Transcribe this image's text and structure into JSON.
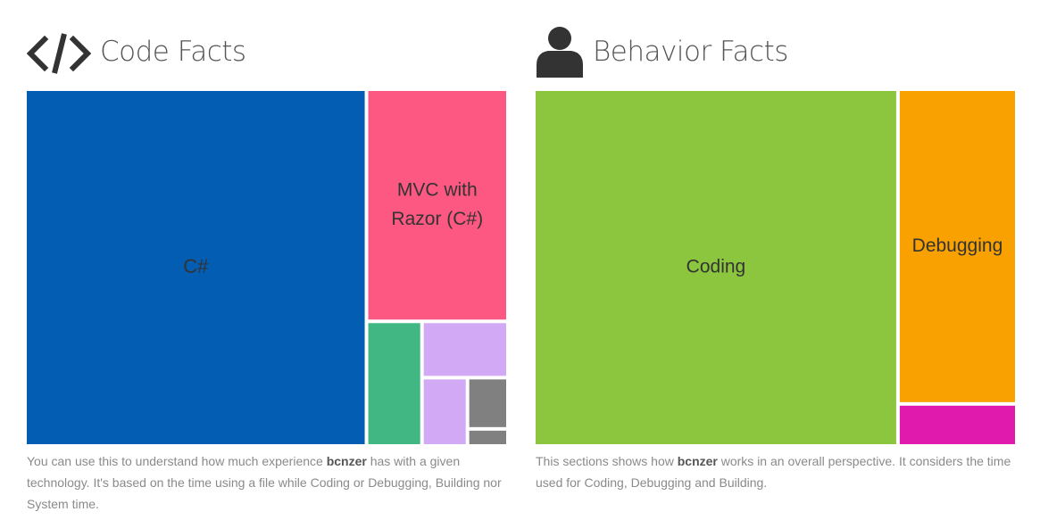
{
  "code_facts": {
    "title": "Code Facts",
    "icon": "code-brackets-icon",
    "description": {
      "before": "You can use this to understand how much experience ",
      "user": "bcnzer",
      "after": " has with a given technology. It's based on the time using a file while Coding or Debugging, Building nor System time."
    }
  },
  "behavior_facts": {
    "title": "Behavior Facts",
    "icon": "user-icon",
    "description": {
      "before": "This sections shows how ",
      "user": "bcnzer",
      "after": " works in an overall perspective. It considers the time used for Coding, Debugging and Building."
    }
  },
  "chart_data": [
    {
      "type": "treemap",
      "title": "Code Facts",
      "items": [
        {
          "label": "C#",
          "value": 70.5,
          "color": "#035db3"
        },
        {
          "label": "MVC with Razor (C#)",
          "value": 19.0,
          "color": "#fc5882"
        },
        {
          "label": "",
          "value": 4.0,
          "color": "#41b883"
        },
        {
          "label": "",
          "value": 2.8,
          "color": "#d2a9f5"
        },
        {
          "label": "",
          "value": 1.8,
          "color": "#d2a9f5"
        },
        {
          "label": "",
          "value": 1.2,
          "color": "#808080"
        },
        {
          "label": "",
          "value": 0.4,
          "color": "#808080"
        }
      ]
    },
    {
      "type": "treemap",
      "title": "Behavior Facts",
      "items": [
        {
          "label": "Coding",
          "value": 75.4,
          "color": "#8cc63f"
        },
        {
          "label": "Debugging",
          "value": 21.7,
          "color": "#f8a100"
        },
        {
          "label": "",
          "value": 2.9,
          "color": "#e01aad"
        }
      ]
    }
  ]
}
